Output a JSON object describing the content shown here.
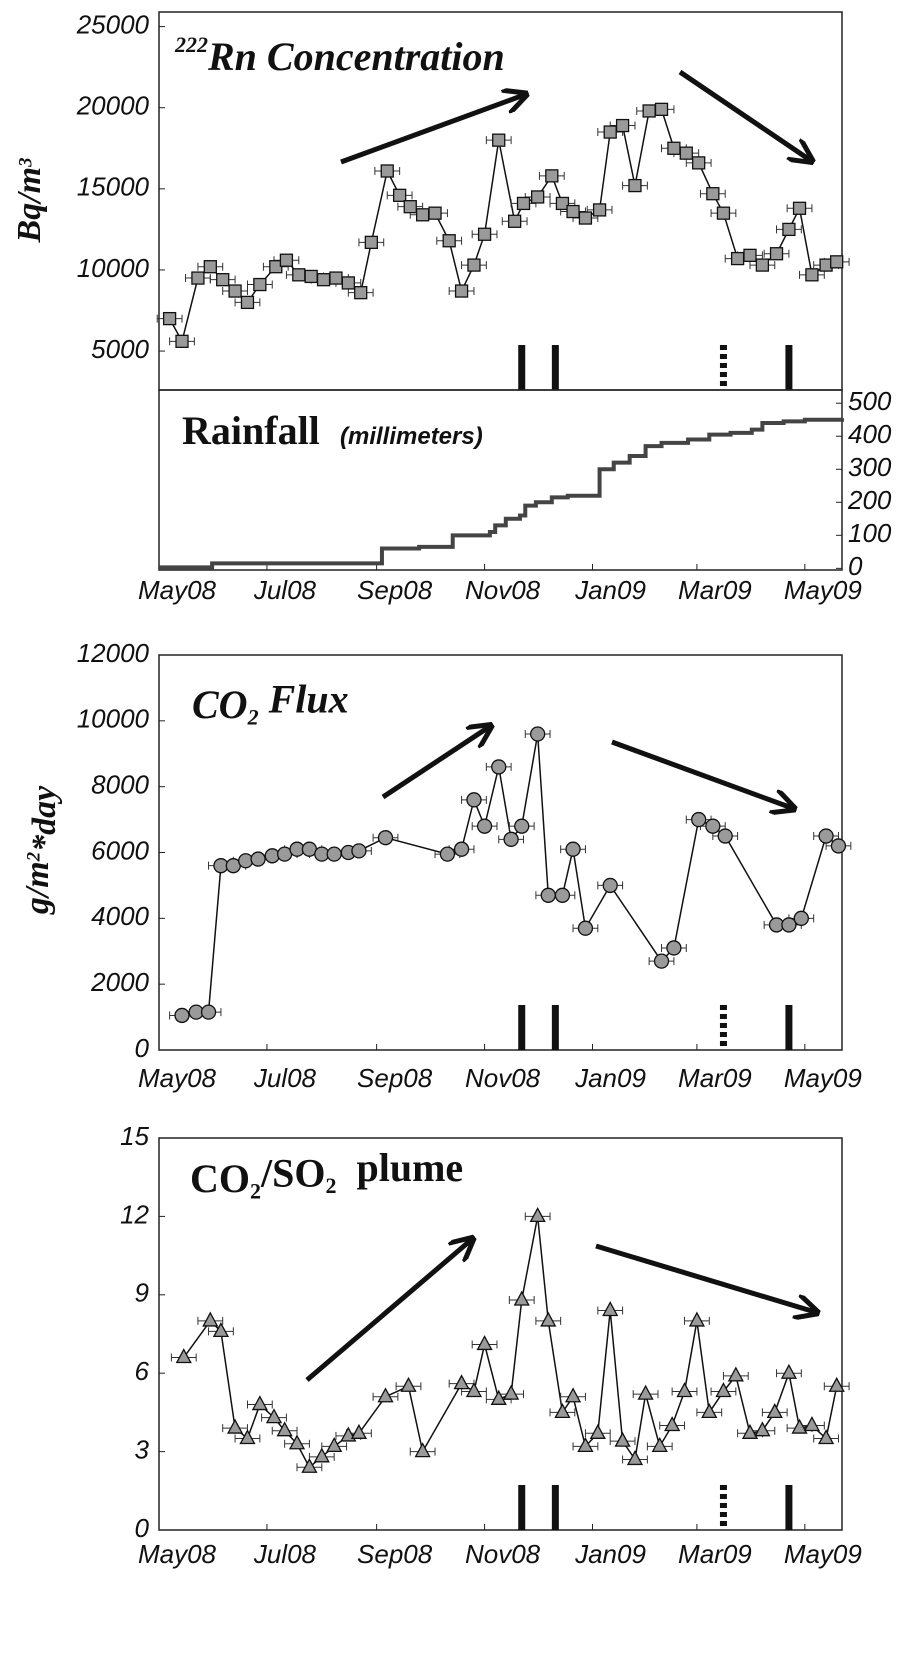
{
  "chart_data": [
    {
      "type": "line",
      "title_parts": [
        {
          "text": "222",
          "shift": "super"
        },
        {
          "text": "Rn Concentration",
          "shift": "none"
        }
      ],
      "title_style": "italic",
      "ylabel_parts": [
        {
          "text": "Bq/m",
          "shift": "none"
        },
        {
          "text": "3",
          "shift": "super"
        }
      ],
      "xlim": [
        0,
        386
      ],
      "ylim": [
        2600,
        25900
      ],
      "yticks": [
        5000,
        10000,
        15000,
        20000,
        25000
      ],
      "marker": "square",
      "color": "#9a9a9a",
      "line_color": "#111111",
      "xerr": 7,
      "x": [
        6,
        13,
        22,
        29,
        36,
        43,
        50,
        57,
        66,
        72,
        79,
        86,
        93,
        100,
        107,
        114,
        120,
        129,
        136,
        142,
        149,
        156,
        164,
        171,
        178,
        184,
        192,
        201,
        206,
        214,
        222,
        228,
        234,
        241,
        249,
        255,
        262,
        269,
        277,
        284,
        291,
        298,
        305,
        313,
        319,
        327,
        334,
        341,
        349,
        356,
        362,
        369,
        377,
        383
      ],
      "values": [
        7000,
        5600,
        9500,
        10200,
        9400,
        8700,
        8000,
        9100,
        10200,
        10600,
        9700,
        9600,
        9400,
        9500,
        9200,
        8600,
        11700,
        16100,
        14600,
        13900,
        13400,
        13500,
        11800,
        8700,
        10300,
        12200,
        18000,
        13000,
        14100,
        14500,
        15800,
        14100,
        13600,
        13200,
        13700,
        18500,
        18900,
        15200,
        19800,
        19900,
        17500,
        17200,
        16600,
        14700,
        13500,
        10700,
        10900,
        10300,
        11000,
        12500,
        13800,
        9700,
        10300,
        10500
      ],
      "event_markers": [
        {
          "x": 205,
          "style": "solid"
        },
        {
          "x": 224,
          "style": "solid"
        },
        {
          "x": 319,
          "style": "dotted"
        },
        {
          "x": 356,
          "style": "solid"
        }
      ]
    },
    {
      "type": "step",
      "title_parts": [
        {
          "text": "Rainfall",
          "shift": "none"
        }
      ],
      "title_style": "normal",
      "subtitle": "(millimeters)",
      "xlim": [
        0,
        386
      ],
      "xticks": [
        {
          "value": 0,
          "label": "May08"
        },
        {
          "value": 61,
          "label": "Jul08"
        },
        {
          "value": 123,
          "label": "Sep08"
        },
        {
          "value": 184,
          "label": "Nov08"
        },
        {
          "value": 245,
          "label": "Jan09"
        },
        {
          "value": 304,
          "label": "Mar09"
        },
        {
          "value": 365,
          "label": "May09"
        }
      ],
      "ylim": [
        -5,
        540
      ],
      "yticks": [
        0,
        100,
        200,
        300,
        400,
        500
      ],
      "yaxis_side": "right",
      "line_color": "#444444",
      "x": [
        0,
        30,
        123,
        126,
        147,
        166,
        187,
        190,
        196,
        204,
        207,
        213,
        222,
        231,
        249,
        257,
        266,
        275,
        284,
        299,
        311,
        323,
        335,
        341,
        353,
        365,
        386
      ],
      "values": [
        3,
        15,
        15,
        60,
        65,
        100,
        110,
        130,
        150,
        160,
        190,
        200,
        215,
        220,
        300,
        320,
        340,
        370,
        380,
        390,
        405,
        410,
        420,
        440,
        445,
        450,
        455
      ]
    },
    {
      "type": "line",
      "title_parts": [
        {
          "text": "CO",
          "shift": "none"
        },
        {
          "text": "2",
          "shift": "sub"
        },
        {
          "text": " Flux",
          "shift": "none"
        }
      ],
      "title_style": "italic",
      "ylabel_parts": [
        {
          "text": "g/m",
          "shift": "none"
        },
        {
          "text": "2",
          "shift": "super"
        },
        {
          "text": "*day",
          "shift": "none"
        }
      ],
      "xlim": [
        0,
        386
      ],
      "xticks": [
        {
          "value": 0,
          "label": "May08"
        },
        {
          "value": 61,
          "label": "Jul08"
        },
        {
          "value": 123,
          "label": "Sep08"
        },
        {
          "value": 184,
          "label": "Nov08"
        },
        {
          "value": 245,
          "label": "Jan09"
        },
        {
          "value": 304,
          "label": "Mar09"
        },
        {
          "value": 365,
          "label": "May09"
        }
      ],
      "ylim": [
        0,
        12000
      ],
      "yticks": [
        0,
        2000,
        4000,
        6000,
        8000,
        10000,
        12000
      ],
      "marker": "circle",
      "color": "#9a9a9a",
      "line_color": "#111111",
      "xerr": 7,
      "x": [
        13,
        21,
        28,
        35,
        42,
        49,
        56,
        64,
        71,
        78,
        85,
        92,
        99,
        107,
        113,
        128,
        163,
        171,
        178,
        184,
        192,
        199,
        205,
        214,
        220,
        228,
        234,
        241,
        255,
        284,
        291,
        305,
        313,
        320,
        349,
        356,
        363,
        377,
        384
      ],
      "values": [
        1050,
        1150,
        1150,
        5600,
        5600,
        5750,
        5800,
        5900,
        5950,
        6100,
        6100,
        5950,
        5950,
        6000,
        6050,
        6450,
        5950,
        6100,
        7600,
        6800,
        8600,
        6400,
        6800,
        9600,
        4700,
        4700,
        6100,
        3700,
        5000,
        2700,
        3100,
        7000,
        6800,
        6500,
        3800,
        3800,
        4000,
        6500,
        6200
      ],
      "event_markers": [
        {
          "x": 205,
          "style": "solid"
        },
        {
          "x": 224,
          "style": "solid"
        },
        {
          "x": 319,
          "style": "dotted"
        },
        {
          "x": 356,
          "style": "solid"
        }
      ]
    },
    {
      "type": "line",
      "title_parts": [
        {
          "text": "CO",
          "shift": "none"
        },
        {
          "text": "2",
          "shift": "sub"
        },
        {
          "text": "/SO",
          "shift": "none"
        },
        {
          "text": "2",
          "shift": "sub"
        },
        {
          "text": "  plume",
          "shift": "none"
        }
      ],
      "title_style": "normal",
      "xlim": [
        0,
        386
      ],
      "xticks": [
        {
          "value": 0,
          "label": "May08"
        },
        {
          "value": 61,
          "label": "Jul08"
        },
        {
          "value": 123,
          "label": "Sep08"
        },
        {
          "value": 184,
          "label": "Nov08"
        },
        {
          "value": 245,
          "label": "Jan09"
        },
        {
          "value": 304,
          "label": "Mar09"
        },
        {
          "value": 365,
          "label": "May09"
        }
      ],
      "ylim": [
        0,
        15
      ],
      "yticks": [
        0,
        3,
        6,
        9,
        12,
        15
      ],
      "marker": "triangle",
      "color": "#9a9a9a",
      "line_color": "#111111",
      "xerr": 7,
      "x": [
        14,
        29,
        35,
        43,
        50,
        57,
        65,
        71,
        78,
        85,
        92,
        99,
        107,
        113,
        128,
        141,
        149,
        171,
        178,
        184,
        192,
        199,
        205,
        214,
        220,
        228,
        234,
        241,
        248,
        255,
        262,
        269,
        275,
        283,
        290,
        297,
        304,
        311,
        319,
        326,
        334,
        341,
        348,
        356,
        362,
        369,
        377,
        383
      ],
      "values": [
        6.6,
        8.0,
        7.6,
        3.9,
        3.5,
        4.8,
        4.3,
        3.8,
        3.3,
        2.4,
        2.8,
        3.2,
        3.6,
        3.7,
        5.1,
        5.5,
        3.0,
        5.6,
        5.3,
        7.1,
        5.0,
        5.2,
        8.8,
        12.0,
        8.0,
        4.5,
        5.1,
        3.2,
        3.7,
        8.4,
        3.4,
        2.7,
        5.2,
        3.2,
        4.0,
        5.3,
        8.0,
        4.5,
        5.3,
        5.9,
        3.7,
        3.8,
        4.5,
        6.0,
        3.9,
        4.0,
        3.5,
        5.5
      ],
      "event_markers": [
        {
          "x": 205,
          "style": "solid"
        },
        {
          "x": 224,
          "style": "solid"
        },
        {
          "x": 319,
          "style": "dotted"
        },
        {
          "x": 356,
          "style": "solid"
        }
      ]
    }
  ]
}
